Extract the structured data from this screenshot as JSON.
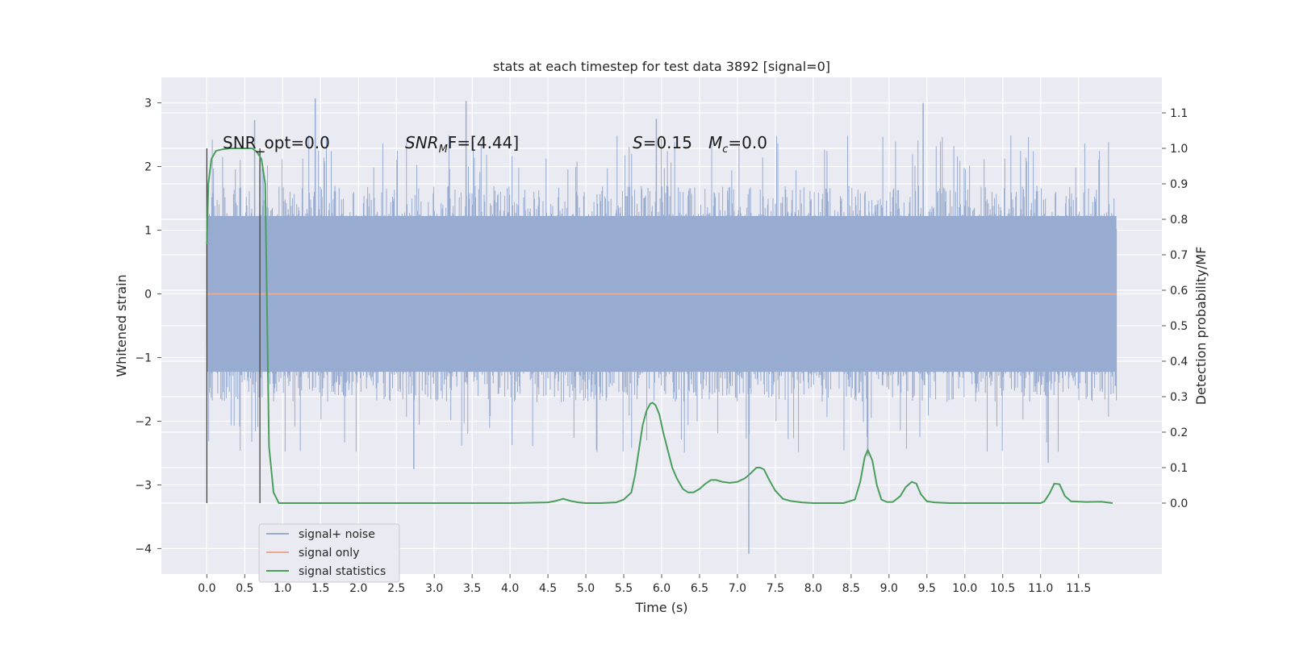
{
  "chart_data": {
    "type": "line",
    "title": "stats at each timestep for test data 3892 [signal=0]",
    "xlabel": "Time (s)",
    "ylabel": "Whitened strain",
    "ylabel_right": "Detection probability/MF",
    "xlim": [
      -0.6,
      12.6
    ],
    "ylim": [
      -4.4,
      3.4
    ],
    "ylim_right": [
      -0.2,
      1.2
    ],
    "x_ticks": [
      "0.0",
      "0.5",
      "1.0",
      "1.5",
      "2.0",
      "2.5",
      "3.0",
      "3.5",
      "4.0",
      "4.5",
      "5.0",
      "5.5",
      "6.0",
      "6.5",
      "7.0",
      "7.5",
      "8.0",
      "8.5",
      "9.0",
      "9.5",
      "10.0",
      "10.5",
      "11.0",
      "11.5"
    ],
    "y_ticks": [
      "3",
      "2",
      "1",
      "0",
      "−1",
      "−2",
      "−3",
      "−4"
    ],
    "y_ticks_right": [
      "1.1",
      "1.0",
      "0.9",
      "0.8",
      "0.7",
      "0.6",
      "0.5",
      "0.4",
      "0.3",
      "0.2",
      "0.1",
      "0.0"
    ],
    "grid": true,
    "legend_position": "lower-left",
    "annotations": {
      "snr_opt": "SNR_opt=0.0",
      "snr_mf_prefix": "SNR",
      "snr_mf_sub": "M",
      "snr_mf_suffix": "F=[4.44]",
      "s_value_prefix": "S",
      "s_value_suffix": "=0.15",
      "mc_prefix": "M",
      "mc_sub": "c",
      "mc_suffix": "=0.0"
    },
    "vertical_markers": [
      0.0,
      0.7
    ],
    "series": [
      {
        "name": "signal+ noise",
        "color": "#98acd1",
        "description_noise_envelope": {
          "t_start": 0.0,
          "t_end": 12.0,
          "typical_upper": 1.7,
          "typical_lower": -1.7,
          "max_peaks": [
            [
              1.43,
              3.07
            ],
            [
              3.42,
              3.03
            ],
            [
              9.45,
              3.0
            ],
            [
              5.93,
              2.75
            ],
            [
              0.63,
              2.73
            ],
            [
              7.15,
              -4.08
            ],
            [
              2.73,
              -2.75
            ],
            [
              11.1,
              -2.65
            ],
            [
              8.72,
              -2.55
            ]
          ]
        }
      },
      {
        "name": "signal only",
        "color": "#e8a98c",
        "x": [
          0.0,
          12.0
        ],
        "values": [
          0.0,
          0.0
        ]
      },
      {
        "name": "signal statistics",
        "color": "#4a9e5c",
        "axis": "right",
        "x": [
          0.0,
          0.02,
          0.06,
          0.12,
          0.2,
          0.3,
          0.4,
          0.5,
          0.6,
          0.66,
          0.72,
          0.77,
          0.82,
          0.88,
          0.95,
          1.05,
          2.0,
          3.0,
          4.0,
          4.5,
          4.6,
          4.7,
          4.8,
          4.9,
          5.0,
          5.2,
          5.4,
          5.5,
          5.6,
          5.65,
          5.7,
          5.75,
          5.8,
          5.85,
          5.88,
          5.92,
          5.97,
          6.02,
          6.08,
          6.14,
          6.2,
          6.28,
          6.35,
          6.42,
          6.5,
          6.58,
          6.65,
          6.72,
          6.8,
          6.9,
          7.0,
          7.1,
          7.18,
          7.25,
          7.3,
          7.35,
          7.42,
          7.5,
          7.6,
          7.7,
          7.85,
          8.0,
          8.2,
          8.4,
          8.55,
          8.62,
          8.68,
          8.72,
          8.78,
          8.84,
          8.9,
          8.97,
          9.05,
          9.15,
          9.22,
          9.3,
          9.36,
          9.42,
          9.5,
          9.6,
          9.8,
          10.5,
          11.0,
          11.05,
          11.12,
          11.18,
          11.25,
          11.32,
          11.4,
          11.6,
          11.8,
          11.95
        ],
        "values": [
          0.73,
          0.9,
          0.97,
          0.993,
          0.997,
          1.0,
          1.0,
          1.0,
          1.0,
          0.99,
          0.97,
          0.9,
          0.16,
          0.03,
          0.0,
          0.0,
          0.0,
          0.0,
          0.0,
          0.002,
          0.006,
          0.012,
          0.006,
          0.002,
          0.0,
          0.0,
          0.002,
          0.01,
          0.03,
          0.08,
          0.15,
          0.22,
          0.26,
          0.28,
          0.283,
          0.276,
          0.25,
          0.2,
          0.15,
          0.1,
          0.07,
          0.04,
          0.03,
          0.03,
          0.04,
          0.055,
          0.065,
          0.065,
          0.06,
          0.057,
          0.06,
          0.07,
          0.085,
          0.1,
          0.1,
          0.095,
          0.065,
          0.035,
          0.012,
          0.006,
          0.002,
          0.0,
          0.0,
          0.0,
          0.01,
          0.06,
          0.13,
          0.15,
          0.12,
          0.05,
          0.01,
          0.003,
          0.003,
          0.02,
          0.045,
          0.06,
          0.055,
          0.025,
          0.005,
          0.002,
          0.0,
          0.0,
          0.0,
          0.005,
          0.028,
          0.055,
          0.053,
          0.02,
          0.005,
          0.003,
          0.004,
          0.0
        ]
      }
    ]
  }
}
